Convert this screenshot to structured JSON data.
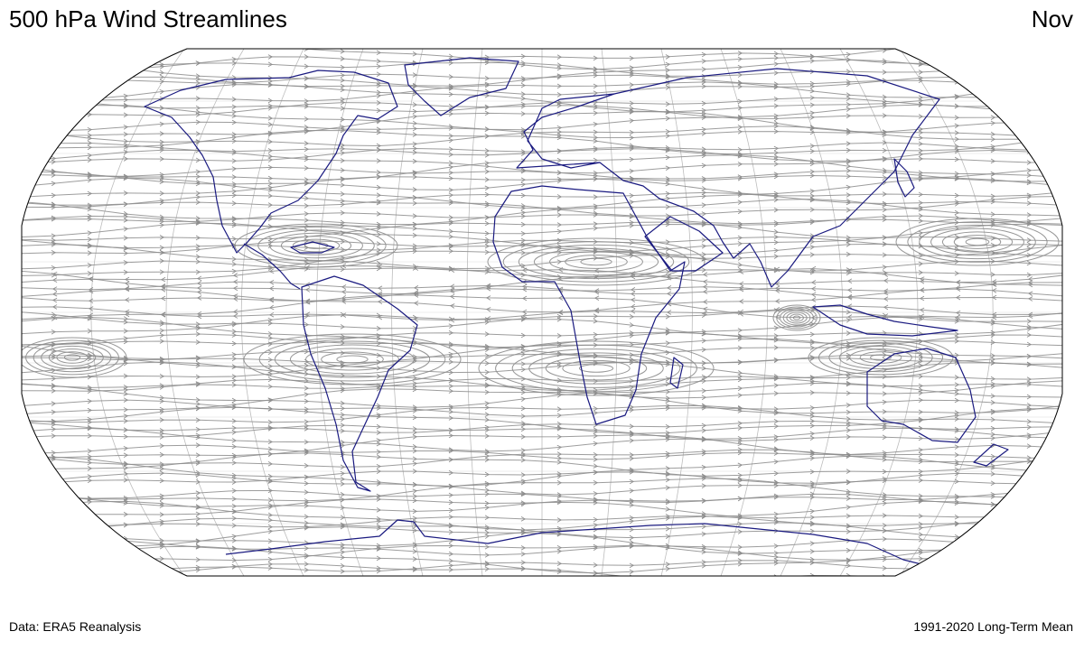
{
  "header": {
    "title": "500 hPa Wind Streamlines",
    "month": "Nov"
  },
  "footer": {
    "source": "Data: ERA5 Reanalysis",
    "period": "1991-2020 Long-Term Mean"
  },
  "map": {
    "projection": "Robinson",
    "streamline_color": "#8c8c8c",
    "coastline_color": "#1a1a80",
    "graticule_color": "#bdbdbd",
    "outline_color": "#000000",
    "features": [
      {
        "type": "anticyclone",
        "name": "north-atlantic-subtropical-high"
      },
      {
        "type": "anticyclone",
        "name": "south-atlantic-subtropical-high"
      },
      {
        "type": "anticyclone",
        "name": "southern-africa-high"
      },
      {
        "type": "anticyclone",
        "name": "north-africa-high"
      },
      {
        "type": "anticyclone",
        "name": "south-asia-high"
      },
      {
        "type": "anticyclone",
        "name": "east-pacific-south-high"
      },
      {
        "type": "anticyclone",
        "name": "australia-high"
      },
      {
        "type": "cyclone",
        "name": "maritime-continent-vortex"
      }
    ]
  }
}
